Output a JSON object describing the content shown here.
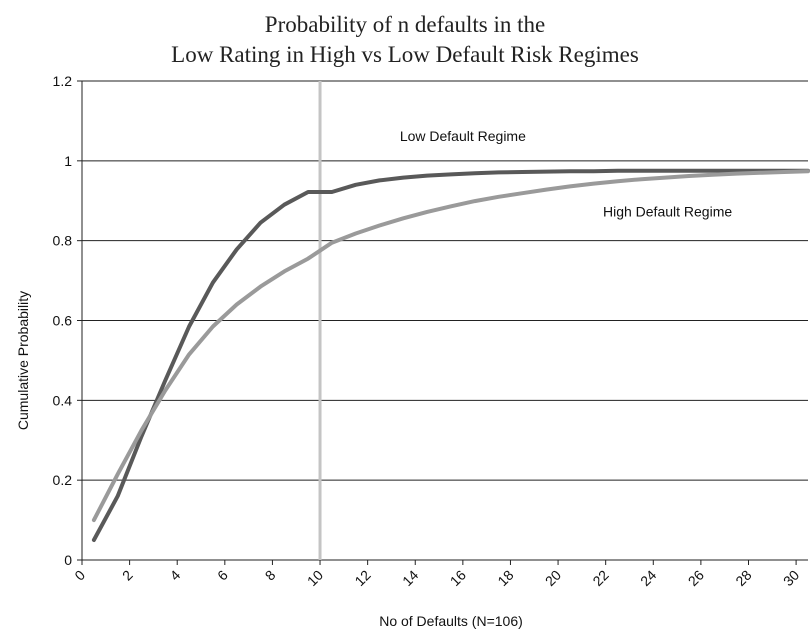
{
  "chart_data": {
    "type": "line",
    "title": [
      "Probability of n defaults in the",
      "Low Rating in High vs Low Default Risk Regimes"
    ],
    "xlabel": "No of Defaults (N=106)",
    "ylabel": "Cumulative Probability",
    "xlim": [
      0,
      30.5
    ],
    "ylim": [
      0,
      1.2
    ],
    "xticks": [
      0,
      2,
      4,
      6,
      8,
      10,
      12,
      14,
      16,
      18,
      20,
      22,
      24,
      26,
      28,
      30
    ],
    "yticks": [
      0,
      0.2,
      0.4,
      0.6,
      0.8,
      1,
      1.2
    ],
    "ytick_labels": [
      "0",
      "0.2",
      "0.4",
      "0.6",
      "0.8",
      "1",
      "1.2"
    ],
    "grid": "horizontal",
    "vline_x": 10,
    "series": [
      {
        "name": "Low Default Regime",
        "color": "#595959",
        "x": [
          0.5,
          1.5,
          2.5,
          3.5,
          4.5,
          5.5,
          6.5,
          7.5,
          8.5,
          9.5,
          10.5,
          11.5,
          12.5,
          13.5,
          14.5,
          15.5,
          16.5,
          17.5,
          18.5,
          19.5,
          20.5,
          21.5,
          22.5,
          23.5,
          24.5,
          25.5,
          26.5,
          27.5,
          28.5,
          29.5,
          30.5
        ],
        "values": [
          0.05,
          0.16,
          0.31,
          0.45,
          0.585,
          0.695,
          0.778,
          0.845,
          0.89,
          0.922,
          0.922,
          0.94,
          0.951,
          0.958,
          0.963,
          0.966,
          0.969,
          0.971,
          0.972,
          0.973,
          0.974,
          0.974,
          0.975,
          0.975,
          0.975,
          0.975,
          0.975,
          0.975,
          0.975,
          0.975,
          0.975
        ]
      },
      {
        "name": "High Default Regime",
        "color": "#9a9a9a",
        "x": [
          0.5,
          1.5,
          2.5,
          3.5,
          4.5,
          5.5,
          6.5,
          7.5,
          8.5,
          9.5,
          10.5,
          11.5,
          12.5,
          13.5,
          14.5,
          15.5,
          16.5,
          17.5,
          18.5,
          19.5,
          20.5,
          21.5,
          22.5,
          23.5,
          24.5,
          25.5,
          26.5,
          27.5,
          28.5,
          29.5,
          30.5
        ],
        "values": [
          0.1,
          0.215,
          0.325,
          0.425,
          0.515,
          0.585,
          0.64,
          0.685,
          0.723,
          0.755,
          0.795,
          0.818,
          0.838,
          0.856,
          0.872,
          0.886,
          0.899,
          0.91,
          0.919,
          0.928,
          0.936,
          0.943,
          0.949,
          0.954,
          0.958,
          0.962,
          0.965,
          0.968,
          0.97,
          0.972,
          0.974
        ]
      }
    ],
    "annotations": [
      {
        "text": "Low Default Regime",
        "x": 16,
        "y": 1.05
      },
      {
        "text": "High Default Regime",
        "x": 24.6,
        "y": 0.86
      }
    ]
  }
}
